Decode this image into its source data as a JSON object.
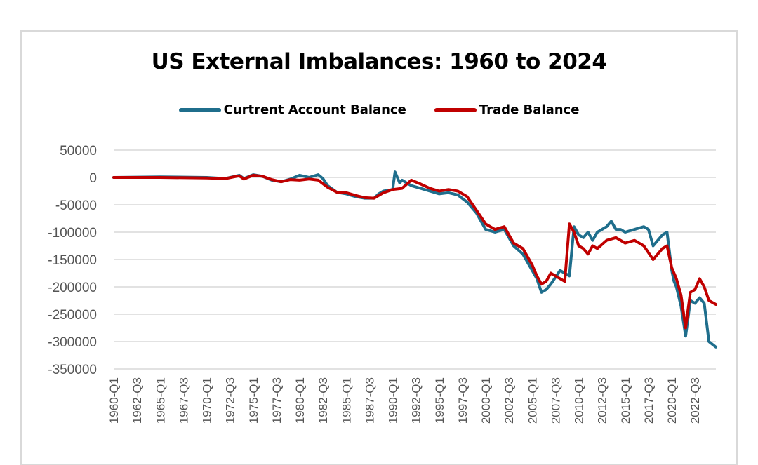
{
  "colors": {
    "current_account": "#1f6e8c",
    "trade": "#c00000",
    "grid": "#d9d9d9",
    "tick": "#555555"
  },
  "chart_data": {
    "type": "line",
    "title": "US External Imbalances: 1960 to 2024",
    "legend": {
      "placement": "top"
    },
    "grid": true,
    "ylim": [
      -350000,
      50000
    ],
    "yticks": [
      50000,
      0,
      -50000,
      -100000,
      -150000,
      -200000,
      -250000,
      -300000,
      -350000
    ],
    "ytick_labels": [
      "50000",
      "0",
      "-50000",
      "-100000",
      "-150000",
      "-200000",
      "-250000",
      "-300000",
      "-350000"
    ],
    "xlim": [
      1960.0,
      2024.75
    ],
    "xtick_labels": [
      "1960-Q1",
      "1962-Q3",
      "1965-Q1",
      "1967-Q3",
      "1970-Q1",
      "1972-Q3",
      "1975-Q1",
      "1977-Q3",
      "1980-Q1",
      "1982-Q3",
      "1985-Q1",
      "1987-Q3",
      "1990-Q1",
      "1992-Q3",
      "1995-Q1",
      "1997-Q3",
      "2000-Q1",
      "2002-Q3",
      "2005-Q1",
      "2007-Q3",
      "2010-Q1",
      "2012-Q3",
      "2015-Q1",
      "2017-Q3",
      "2020-Q1",
      "2022-Q3"
    ],
    "xtick_values": [
      1960.0,
      1962.5,
      1965.0,
      1967.5,
      1970.0,
      1972.5,
      1975.0,
      1977.5,
      1980.0,
      1982.5,
      1985.0,
      1987.5,
      1990.0,
      1992.5,
      1995.0,
      1997.5,
      2000.0,
      2002.5,
      2005.0,
      2007.5,
      2010.0,
      2012.5,
      2015.0,
      2017.5,
      2020.0,
      2022.5
    ],
    "series": [
      {
        "name": "Curtrent Account Balance",
        "x": [
          1960,
          1965,
          1970,
          1972,
          1973.5,
          1974,
          1975,
          1976,
          1977,
          1978,
          1979,
          1980,
          1981,
          1982,
          1982.5,
          1983,
          1984,
          1985,
          1986,
          1987,
          1988,
          1988.5,
          1989,
          1990,
          1990.25,
          1990.75,
          1991,
          1992,
          1993,
          1994,
          1995,
          1996,
          1997,
          1998,
          1999,
          2000,
          2001,
          2002,
          2003,
          2004,
          2005,
          2005.5,
          2006,
          2006.5,
          2007,
          2008,
          2008.5,
          2009,
          2009.5,
          2010,
          2010.5,
          2011,
          2011.5,
          2012,
          2012.5,
          2013,
          2013.5,
          2014,
          2014.5,
          2015,
          2016,
          2017,
          2017.5,
          2018,
          2018.5,
          2019,
          2019.5,
          2020,
          2020.25,
          2020.5,
          2021,
          2021.5,
          2022,
          2022.5,
          2023,
          2023.5,
          2024,
          2024.75
        ],
        "y": [
          0,
          1000,
          0,
          -2000,
          4000,
          -2000,
          5000,
          2000,
          -5000,
          -8000,
          -3000,
          4000,
          0,
          5000,
          -2000,
          -15000,
          -27000,
          -30000,
          -35000,
          -38000,
          -38000,
          -30000,
          -25000,
          -22000,
          10000,
          -10000,
          -5000,
          -15000,
          -20000,
          -25000,
          -30000,
          -28000,
          -32000,
          -45000,
          -65000,
          -95000,
          -100000,
          -95000,
          -125000,
          -140000,
          -170000,
          -185000,
          -210000,
          -205000,
          -195000,
          -170000,
          -175000,
          -180000,
          -90000,
          -105000,
          -110000,
          -100000,
          -115000,
          -100000,
          -95000,
          -90000,
          -80000,
          -95000,
          -95000,
          -100000,
          -95000,
          -90000,
          -95000,
          -125000,
          -115000,
          -105000,
          -100000,
          -170000,
          -190000,
          -200000,
          -235000,
          -290000,
          -225000,
          -230000,
          -220000,
          -230000,
          -300000,
          -310000
        ]
      },
      {
        "name": "Trade Balance",
        "x": [
          1960,
          1965,
          1970,
          1972,
          1973.5,
          1974,
          1975,
          1976,
          1977,
          1978,
          1979,
          1980,
          1981,
          1982,
          1983,
          1984,
          1985,
          1986,
          1987,
          1988,
          1989,
          1990,
          1991,
          1992,
          1993,
          1994,
          1995,
          1996,
          1997,
          1998,
          1999,
          2000,
          2001,
          2002,
          2003,
          2004,
          2005,
          2005.5,
          2006,
          2006.5,
          2007,
          2008,
          2008.5,
          2009,
          2009.5,
          2010,
          2010.5,
          2011,
          2011.5,
          2012,
          2013,
          2014,
          2015,
          2016,
          2017,
          2018,
          2018.5,
          2019,
          2019.5,
          2020,
          2020.5,
          2021,
          2021.5,
          2022,
          2022.5,
          2023,
          2023.5,
          2024,
          2024.75
        ],
        "y": [
          0,
          0,
          -1000,
          -2000,
          3000,
          -3000,
          4000,
          2000,
          -4000,
          -8000,
          -4000,
          -5000,
          -3000,
          -5000,
          -18000,
          -27000,
          -28000,
          -33000,
          -37000,
          -38000,
          -28000,
          -22000,
          -20000,
          -5000,
          -12000,
          -20000,
          -25000,
          -22000,
          -25000,
          -35000,
          -60000,
          -85000,
          -95000,
          -90000,
          -120000,
          -130000,
          -160000,
          -180000,
          -195000,
          -190000,
          -175000,
          -185000,
          -190000,
          -85000,
          -100000,
          -125000,
          -130000,
          -140000,
          -125000,
          -130000,
          -115000,
          -110000,
          -120000,
          -115000,
          -125000,
          -150000,
          -140000,
          -130000,
          -125000,
          -165000,
          -185000,
          -215000,
          -275000,
          -210000,
          -205000,
          -185000,
          -200000,
          -225000,
          -232000
        ]
      }
    ]
  }
}
